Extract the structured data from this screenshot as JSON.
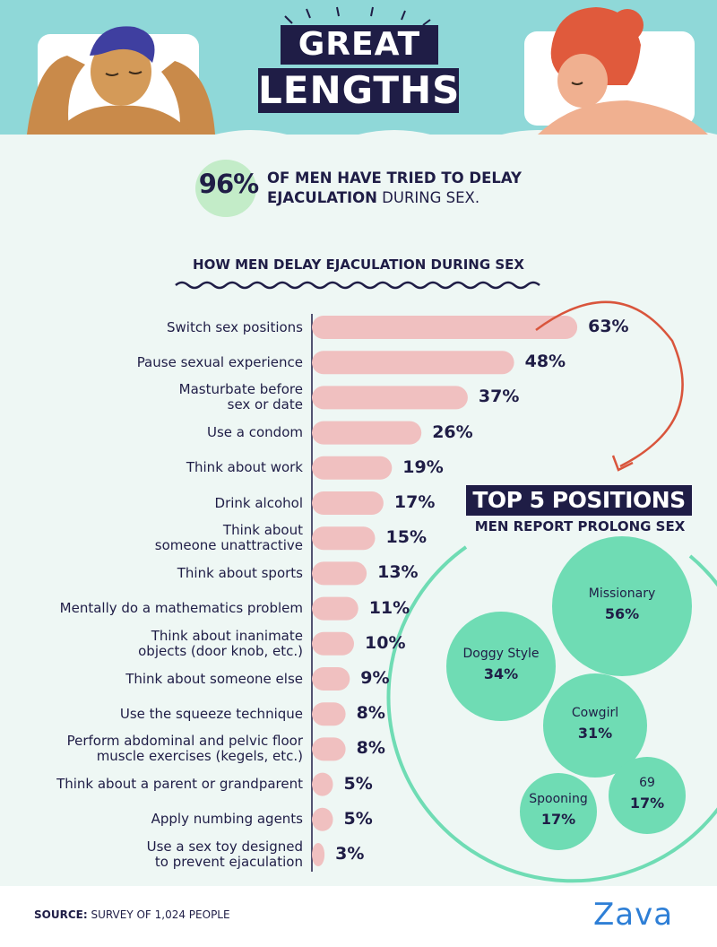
{
  "title": {
    "line1": "GREAT",
    "line2": "LENGTHS"
  },
  "headline": {
    "value": "96%",
    "line1": "OF MEN HAVE TRIED TO DELAY",
    "line2_bold": "EJACULATION",
    "line2_rest": " DURING SEX."
  },
  "colors": {
    "navy": "#1f1d46",
    "bar": "#f0c0c0",
    "bubble": "#6fdcb4",
    "mint": "#c3ecc8",
    "header_bg": "#8fd8d8",
    "arrow": "#d9553c",
    "brand": "#2e7fd6"
  },
  "chart_data": [
    {
      "type": "bar",
      "orientation": "horizontal",
      "title": "HOW MEN DELAY EJACULATION DURING SEX",
      "categories": [
        "Switch sex positions",
        "Pause sexual experience",
        "Masturbate before\nsex or date",
        "Use a condom",
        "Think about work",
        "Drink alcohol",
        "Think about\nsomeone unattractive",
        "Think about sports",
        "Mentally do a mathematics problem",
        "Think about inanimate\nobjects (door knob, etc.)",
        "Think about someone else",
        "Use the squeeze technique",
        "Perform abdominal and pelvic floor\nmuscle exercises (kegels, etc.)",
        "Think about a parent or grandparent",
        "Apply numbing agents",
        "Use a sex toy designed\nto prevent ejaculation"
      ],
      "values": [
        63,
        48,
        37,
        26,
        19,
        17,
        15,
        13,
        11,
        10,
        9,
        8,
        8,
        5,
        5,
        3
      ],
      "value_labels": [
        "63%",
        "48%",
        "37%",
        "26%",
        "19%",
        "17%",
        "15%",
        "13%",
        "11%",
        "10%",
        "9%",
        "8%",
        "8%",
        "5%",
        "5%",
        "3%"
      ],
      "unit": "%"
    },
    {
      "type": "bubble",
      "title": "TOP 5 POSITIONS",
      "subtitle": "MEN REPORT PROLONG SEX",
      "categories": [
        "Missionary",
        "Doggy Style",
        "Cowgirl",
        "69",
        "Spooning"
      ],
      "values": [
        56,
        34,
        31,
        17,
        17
      ],
      "value_labels": [
        "56%",
        "34%",
        "31%",
        "17%",
        "17%"
      ],
      "unit": "%"
    }
  ],
  "footer": {
    "source_label": "SOURCE:",
    "source_text": " SURVEY OF 1,024 PEOPLE",
    "brand": "Zava"
  }
}
